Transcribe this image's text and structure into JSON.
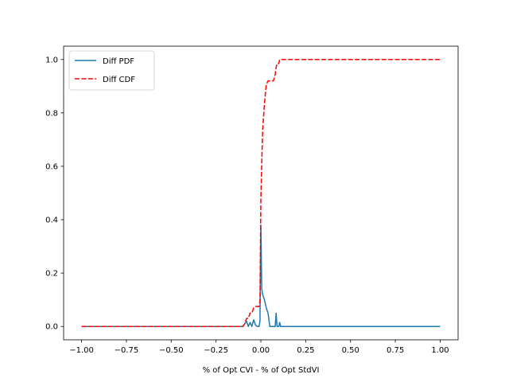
{
  "chart_data": {
    "type": "line",
    "xlabel": "% of Opt CVI - % of Opt StdVI",
    "ylabel": "",
    "xlim": [
      -1.1,
      1.1
    ],
    "ylim": [
      -0.05,
      1.05
    ],
    "xticks": [
      -1.0,
      -0.75,
      -0.5,
      -0.25,
      0.0,
      0.25,
      0.5,
      0.75,
      1.0
    ],
    "xtick_labels": [
      "−1.00",
      "−0.75",
      "−0.50",
      "−0.25",
      "0.00",
      "0.25",
      "0.50",
      "0.75",
      "1.00"
    ],
    "yticks": [
      0.0,
      0.2,
      0.4,
      0.6,
      0.8,
      1.0
    ],
    "ytick_labels": [
      "0.0",
      "0.2",
      "0.4",
      "0.6",
      "0.8",
      "1.0"
    ],
    "grid": false,
    "legend_position": "upper left",
    "series": [
      {
        "name": "Diff PDF",
        "color": "#1f77b4",
        "style": "solid",
        "x": [
          -1.0,
          -0.1,
          -0.09,
          -0.08,
          -0.07,
          -0.06,
          -0.05,
          -0.04,
          -0.03,
          -0.02,
          -0.01,
          -0.005,
          0.0,
          0.005,
          0.01,
          0.02,
          0.03,
          0.04,
          0.05,
          0.06,
          0.07,
          0.08,
          0.085,
          0.09,
          0.1,
          0.105,
          0.11,
          0.12,
          1.0
        ],
        "y": [
          0.0,
          0.0,
          0.01,
          0.02,
          0.0,
          0.015,
          0.0,
          0.025,
          0.005,
          0.0,
          0.0,
          0.02,
          0.38,
          0.14,
          0.12,
          0.1,
          0.07,
          0.05,
          0.0,
          0.0,
          0.0,
          0.0,
          0.05,
          0.0,
          0.0,
          0.015,
          0.0,
          0.0,
          0.0
        ]
      },
      {
        "name": "Diff CDF",
        "color": "#ff0000",
        "style": "dashed",
        "x": [
          -1.0,
          -0.1,
          -0.09,
          -0.08,
          -0.07,
          -0.06,
          -0.05,
          -0.04,
          -0.03,
          -0.02,
          -0.01,
          -0.005,
          0.0,
          0.005,
          0.01,
          0.02,
          0.03,
          0.04,
          0.05,
          0.06,
          0.07,
          0.08,
          0.085,
          0.09,
          0.1,
          0.105,
          0.11,
          0.12,
          1.0
        ],
        "y": [
          0.0,
          0.0,
          0.01,
          0.03,
          0.03,
          0.05,
          0.05,
          0.07,
          0.075,
          0.075,
          0.075,
          0.095,
          0.475,
          0.615,
          0.735,
          0.835,
          0.905,
          0.92,
          0.92,
          0.92,
          0.92,
          0.945,
          0.97,
          0.985,
          0.985,
          1.0,
          1.0,
          1.0,
          1.0
        ]
      }
    ]
  }
}
